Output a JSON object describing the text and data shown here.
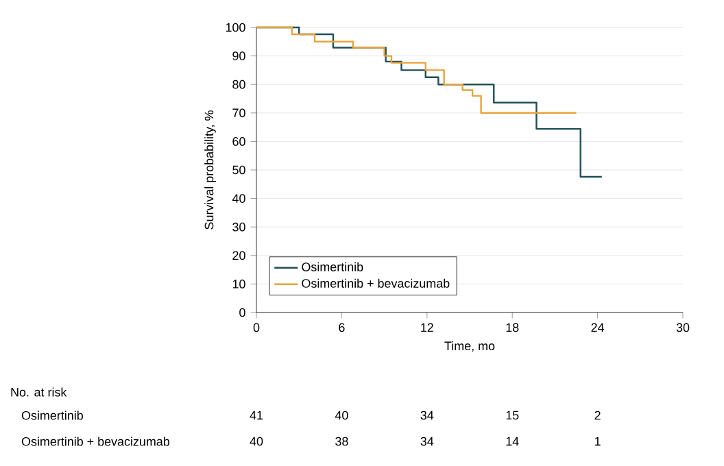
{
  "chart_data": {
    "type": "step",
    "xlabel": "Time, mo",
    "ylabel": "Survival probability, %",
    "xlim": [
      0,
      30
    ],
    "xticks": [
      0,
      6,
      12,
      18,
      24,
      30
    ],
    "ylim": [
      0,
      100
    ],
    "yticks": [
      0,
      10,
      20,
      30,
      40,
      50,
      60,
      70,
      80,
      90,
      100
    ],
    "grid": "y",
    "legend": "bottom left",
    "line_style": "solid",
    "series": [
      {
        "name": "Osimertinib",
        "color": "#1f4f55",
        "x": [
          0,
          3.0,
          5.4,
          9.1,
          10.2,
          11.9,
          12.8,
          16.7,
          19.7,
          22.8,
          24.3
        ],
        "values": [
          100,
          97.6,
          92.9,
          88,
          85,
          82.5,
          80,
          73.6,
          64.4,
          47.6,
          47.6
        ]
      },
      {
        "name": "Osimertinib + bevacizumab",
        "color": "#e8a33a",
        "x": [
          0,
          2.5,
          4.1,
          6.8,
          9.0,
          9.5,
          11.9,
          13.2,
          14.5,
          15.2,
          15.8,
          22.5
        ],
        "values": [
          100,
          97.6,
          95,
          92.9,
          90,
          87.6,
          85,
          80,
          78,
          76,
          70,
          70
        ]
      }
    ],
    "annotations": [
      "No. at risk",
      "Osimertinib",
      "Osimertinib + bevacizumab",
      "41",
      "40",
      "34",
      "15",
      "2",
      "40",
      "38",
      "34",
      "14",
      "1"
    ]
  }
}
